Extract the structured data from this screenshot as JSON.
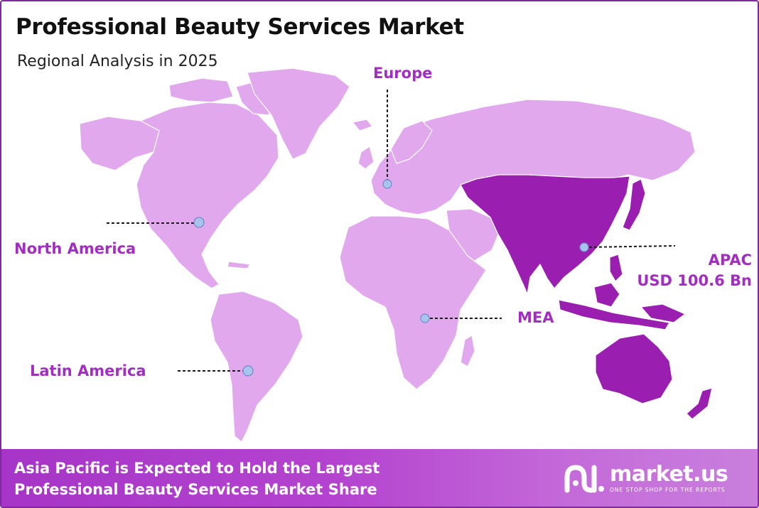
{
  "header": {
    "title": "Professional Beauty Services Market",
    "subtitle": "Regional Analysis in 2025"
  },
  "regions": [
    {
      "key": "europe",
      "label": "Europe",
      "highlighted": false
    },
    {
      "key": "north_america",
      "label": "North America",
      "highlighted": false
    },
    {
      "key": "apac",
      "label": "APAC",
      "value_label": "USD 100.6 Bn",
      "highlighted": true
    },
    {
      "key": "mea",
      "label": "MEA",
      "highlighted": false
    },
    {
      "key": "latin_america",
      "label": "Latin America",
      "highlighted": false
    }
  ],
  "colors": {
    "land": "#e2a8ee",
    "highlight": "#9a1fb0",
    "label": "#a12ec0",
    "marker": "#a9c4ec",
    "footer_start": "#a635c7",
    "footer_end": "#c97fdd"
  },
  "footer": {
    "line1": "Asia Pacific is Expected to Hold the Largest",
    "line2": "Professional Beauty Services Market Share"
  },
  "brand": {
    "name": "market.us",
    "tagline": "ONE STOP SHOP FOR THE REPORTS",
    "icon": "market-us-logo-icon"
  }
}
